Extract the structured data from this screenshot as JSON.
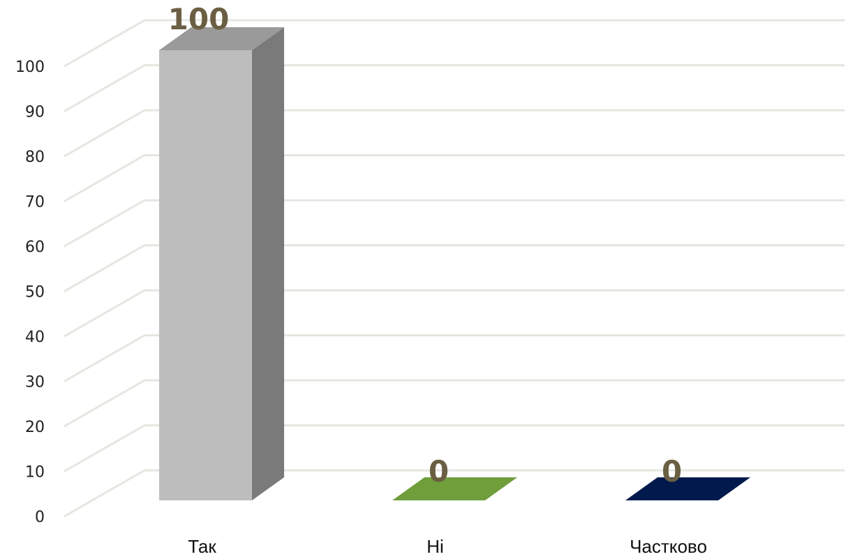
{
  "chart_data": {
    "type": "bar",
    "style": "3d-column",
    "title": "",
    "xlabel": "",
    "ylabel": "",
    "categories": [
      "Так",
      "Ні",
      "Частково"
    ],
    "values": [
      100,
      0,
      0
    ],
    "value_labels": [
      "100",
      "0",
      "0"
    ],
    "ylim": [
      0,
      100
    ],
    "yticks": [
      0,
      10,
      20,
      30,
      40,
      50,
      60,
      70,
      80,
      90,
      100
    ],
    "ytick_labels": [
      "0",
      "10",
      "20",
      "30",
      "40",
      "50",
      "60",
      "70",
      "80",
      "90",
      "100"
    ],
    "grid": true,
    "legend": "none",
    "colors": {
      "bars": [
        "#bdbdbd",
        "#6f9e3a",
        "#001a4d"
      ],
      "bar_sides": [
        "#7a7a7a",
        "#577f2b",
        "#00123a"
      ],
      "bar_tops": [
        "#9a9a9a",
        "#6f9e3a",
        "#001a4d"
      ],
      "grid": "#e6e6e0",
      "data_label": "#6b5f43"
    }
  }
}
